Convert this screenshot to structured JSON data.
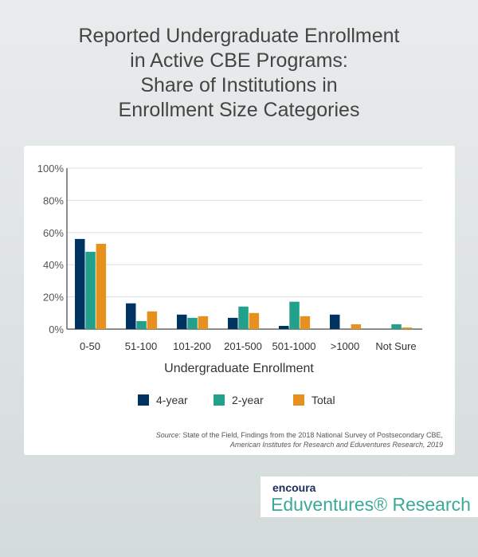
{
  "title": [
    "Reported Undergraduate Enrollment",
    "in Active CBE Programs:",
    "Share of Institutions in",
    "Enrollment Size Categories"
  ],
  "chart_data": {
    "type": "bar",
    "categories": [
      "0-50",
      "51-100",
      "101-200",
      "201-500",
      "501-1000",
      ">1000",
      "Not Sure"
    ],
    "series": [
      {
        "name": "4-year",
        "color": "#003262",
        "values": [
          56,
          16,
          9,
          7,
          2,
          9,
          0
        ]
      },
      {
        "name": "2-year",
        "color": "#22a08c",
        "values": [
          48,
          5,
          7,
          14,
          17,
          0,
          3
        ]
      },
      {
        "name": "Total",
        "color": "#e8901e",
        "values": [
          53,
          11,
          8,
          10,
          8,
          3,
          1
        ]
      }
    ],
    "xlabel": "Undergraduate Enrollment",
    "ylabel": "",
    "ylim": [
      0,
      100
    ],
    "yticks": [
      "0%",
      "20%",
      "40%",
      "60%",
      "80%",
      "100%"
    ],
    "grid": true,
    "legend": "bottom"
  },
  "source": {
    "label": "Source:",
    "line1": " State of the Field, Findings from the 2018 National Survey of Postsecondary CBE,",
    "line2": "American Institutes for Research and Eduventures Research, 2019"
  },
  "logo": {
    "brand": "encoura",
    "name": "Eduventures® Research"
  }
}
